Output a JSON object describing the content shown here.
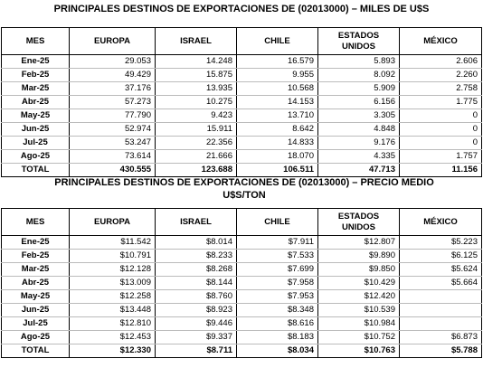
{
  "table1": {
    "title": "PRINCIPALES DESTINOS DE EXPORTACIONES DE (02013000) – MILES DE U$S",
    "columns": [
      "MES",
      "EUROPA",
      "ISRAEL",
      "CHILE",
      "ESTADOS UNIDOS",
      "MÉXICO"
    ],
    "rows": [
      [
        "Ene-25",
        "29.053",
        "14.248",
        "16.579",
        "5.893",
        "2.606"
      ],
      [
        "Feb-25",
        "49.429",
        "15.875",
        "9.955",
        "8.092",
        "2.260"
      ],
      [
        "Mar-25",
        "37.176",
        "13.935",
        "10.568",
        "5.909",
        "2.758"
      ],
      [
        "Abr-25",
        "57.273",
        "10.275",
        "14.153",
        "6.156",
        "1.775"
      ],
      [
        "May-25",
        "77.790",
        "9.423",
        "13.710",
        "3.305",
        "0"
      ],
      [
        "Jun-25",
        "52.974",
        "15.911",
        "8.642",
        "4.848",
        "0"
      ],
      [
        "Jul-25",
        "53.247",
        "22.356",
        "14.833",
        "9.176",
        "0"
      ],
      [
        "Ago-25",
        "73.614",
        "21.666",
        "18.070",
        "4.335",
        "1.757"
      ],
      [
        "TOTAL",
        "430.555",
        "123.688",
        "106.511",
        "47.713",
        "11.156"
      ]
    ]
  },
  "table2": {
    "title": "PRINCIPALES DESTINOS DE EXPORTACIONES DE (02013000) – PRECIO MEDIO U$S/TON",
    "columns": [
      "MES",
      "EUROPA",
      "ISRAEL",
      "CHILE",
      "ESTADOS UNIDOS",
      "MÉXICO"
    ],
    "rows": [
      [
        "Ene-25",
        "$11.542",
        "$8.014",
        "$7.911",
        "$12.807",
        "$5.223"
      ],
      [
        "Feb-25",
        "$10.791",
        "$8.233",
        "$7.533",
        "$9.890",
        "$6.125"
      ],
      [
        "Mar-25",
        "$12.128",
        "$8.268",
        "$7.699",
        "$9.850",
        "$5.624"
      ],
      [
        "Abr-25",
        "$13.009",
        "$8.144",
        "$7.958",
        "$10.429",
        "$5.664"
      ],
      [
        "May-25",
        "$12.258",
        "$8.760",
        "$7.953",
        "$12.420",
        null
      ],
      [
        "Jun-25",
        "$13.448",
        "$8.923",
        "$8.348",
        "$10.539",
        null
      ],
      [
        "Jul-25",
        "$12.810",
        "$9.446",
        "$8.616",
        "$10.984",
        null
      ],
      [
        "Ago-25",
        "$12.453",
        "$9.337",
        "$8.183",
        "$10.752",
        "$6.873"
      ],
      [
        "TOTAL",
        "$12.330",
        "$8.711",
        "$8.034",
        "$10.763",
        "$5.788"
      ]
    ]
  }
}
